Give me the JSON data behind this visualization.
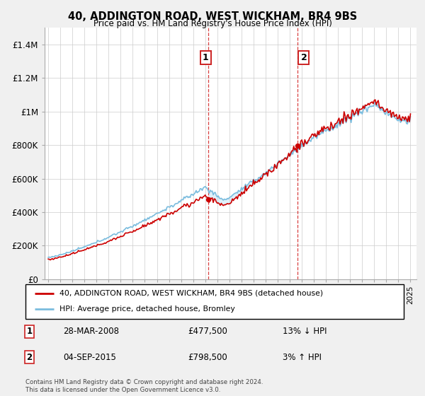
{
  "title": "40, ADDINGTON ROAD, WEST WICKHAM, BR4 9BS",
  "subtitle": "Price paid vs. HM Land Registry's House Price Index (HPI)",
  "x_start_year": 1995,
  "x_end_year": 2025,
  "ylim": [
    0,
    1500000
  ],
  "yticks": [
    0,
    200000,
    400000,
    600000,
    800000,
    1000000,
    1200000,
    1400000
  ],
  "ytick_labels": [
    "£0",
    "£200K",
    "£400K",
    "£600K",
    "£800K",
    "£1M",
    "£1.2M",
    "£1.4M"
  ],
  "sale1_year": 2008.23,
  "sale1_price": 477500,
  "sale1_label": "1",
  "sale1_date": "28-MAR-2008",
  "sale1_price_str": "£477,500",
  "sale1_hpi_str": "13% ↓ HPI",
  "sale2_year": 2015.67,
  "sale2_price": 798500,
  "sale2_label": "2",
  "sale2_date": "04-SEP-2015",
  "sale2_price_str": "£798,500",
  "sale2_hpi_str": "3% ↑ HPI",
  "hpi_color": "#7abcde",
  "price_color": "#cc0000",
  "vline_color": "#cc0000",
  "shade_color": "#daeef8",
  "legend_line1": "40, ADDINGTON ROAD, WEST WICKHAM, BR4 9BS (detached house)",
  "legend_line2": "HPI: Average price, detached house, Bromley",
  "footer": "Contains HM Land Registry data © Crown copyright and database right 2024.\nThis data is licensed under the Open Government Licence v3.0.",
  "background_color": "#f0f0f0",
  "plot_bg_color": "#ffffff"
}
